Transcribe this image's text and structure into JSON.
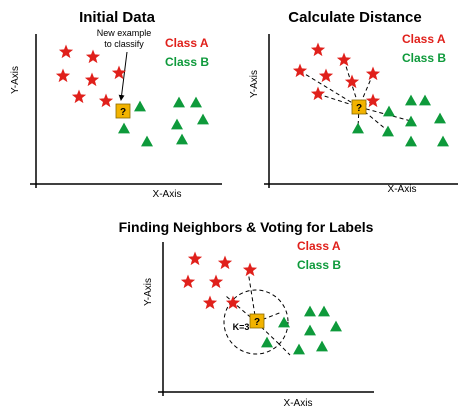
{
  "colors": {
    "class_a": "#e0201b",
    "class_b": "#0e9a3b",
    "unknown_fill": "#f2b300",
    "axis": "#000000"
  },
  "panels": [
    {
      "title": "Initial Data",
      "x_axis_label": "X-Axis",
      "y_axis_label": "Y-Axis",
      "legend": {
        "class_a": "Class A",
        "class_b": "Class B"
      },
      "note": [
        "New example",
        "to classify"
      ],
      "unknown_label": "?"
    },
    {
      "title": "Calculate Distance",
      "x_axis_label": "X-Axis",
      "y_axis_label": "Y-Axis",
      "legend": {
        "class_a": "Class A",
        "class_b": "Class B"
      },
      "unknown_label": "?"
    },
    {
      "title": "Finding Neighbors & Voting for Labels",
      "x_axis_label": "X-Axis",
      "y_axis_label": "Y-Axis",
      "legend": {
        "class_a": "Class A",
        "class_b": "Class B"
      },
      "unknown_label": "?",
      "k_label": "K=3"
    }
  ]
}
